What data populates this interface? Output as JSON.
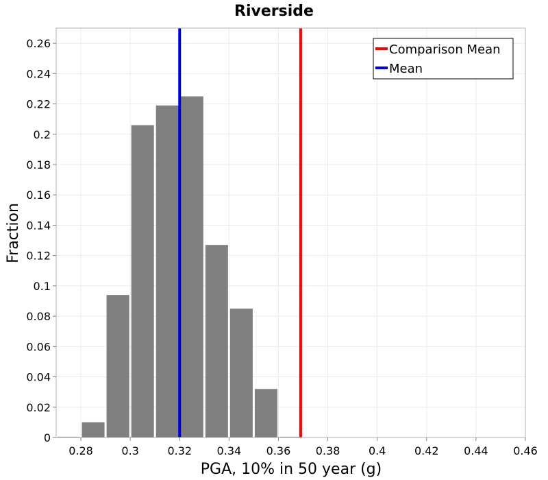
{
  "chart_data": {
    "type": "bar",
    "title": "Riverside",
    "xlabel": "PGA, 10% in 50 year (g)",
    "ylabel": "Fraction",
    "xlim": [
      0.27,
      0.46
    ],
    "ylim": [
      0,
      0.27
    ],
    "xticks": [
      0.28,
      0.3,
      0.32,
      0.34,
      0.36,
      0.38,
      0.4,
      0.42,
      0.44,
      0.46
    ],
    "xtick_labels": [
      "0.28",
      "0.3",
      "0.32",
      "0.34",
      "0.36",
      "0.38",
      "0.4",
      "0.42",
      "0.44",
      "0.46"
    ],
    "yticks": [
      0,
      0.02,
      0.04,
      0.06,
      0.08,
      0.1,
      0.12,
      0.14,
      0.16,
      0.18,
      0.2,
      0.22,
      0.24,
      0.26
    ],
    "ytick_labels": [
      "0",
      "0.02",
      "0.04",
      "0.06",
      "0.08",
      "0.1",
      "0.12",
      "0.14",
      "0.16",
      "0.18",
      "0.2",
      "0.22",
      "0.24",
      "0.26"
    ],
    "grid": true,
    "bin_width": 0.01,
    "bins": [
      {
        "center": 0.275,
        "value": 0.0005
      },
      {
        "center": 0.285,
        "value": 0.01
      },
      {
        "center": 0.295,
        "value": 0.094
      },
      {
        "center": 0.305,
        "value": 0.206
      },
      {
        "center": 0.315,
        "value": 0.219
      },
      {
        "center": 0.325,
        "value": 0.225
      },
      {
        "center": 0.335,
        "value": 0.127
      },
      {
        "center": 0.345,
        "value": 0.085
      },
      {
        "center": 0.355,
        "value": 0.032
      },
      {
        "center": 0.365,
        "value": 0.0005
      }
    ],
    "bar_color": "#808080",
    "lines": [
      {
        "name": "Comparison Mean",
        "x": 0.369,
        "color": "#ff0000"
      },
      {
        "name": "Mean",
        "x": 0.32,
        "color": "#0000dd"
      }
    ],
    "legend": {
      "position": "top-right",
      "entries": [
        {
          "label": "Comparison Mean",
          "color": "#ff0000"
        },
        {
          "label": "Mean",
          "color": "#0000dd"
        }
      ]
    }
  }
}
